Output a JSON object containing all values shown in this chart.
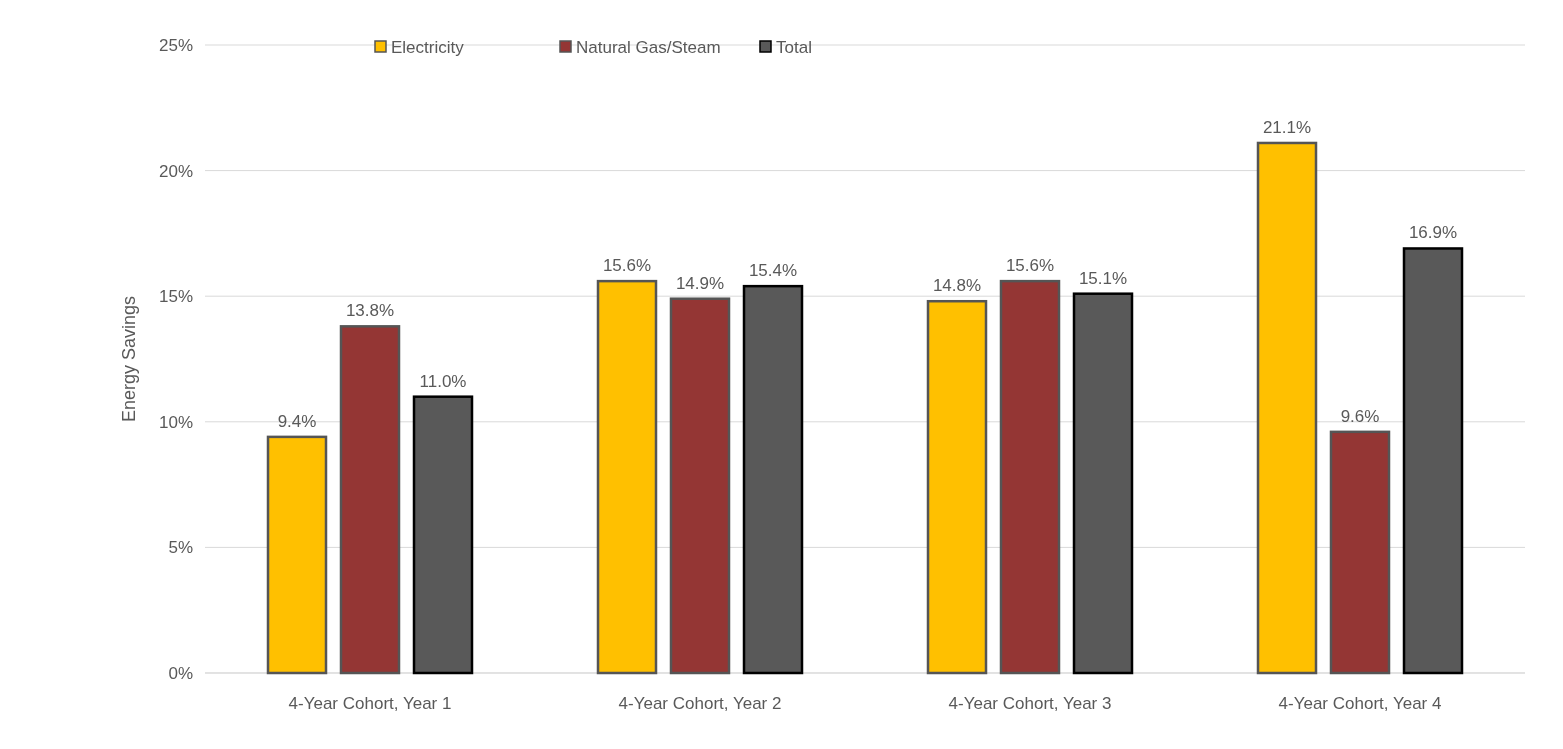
{
  "chart_data": {
    "type": "bar",
    "ylabel": "Energy Savings",
    "categories": [
      "4-Year Cohort, Year 1",
      "4-Year Cohort, Year 2",
      "4-Year Cohort, Year 3",
      "4-Year Cohort, Year 4"
    ],
    "series": [
      {
        "name": "Electricity",
        "color": "#ffc000",
        "values": [
          9.4,
          15.6,
          14.8,
          21.1
        ]
      },
      {
        "name": "Natural Gas/Steam",
        "color": "#943634",
        "values": [
          13.8,
          14.9,
          15.6,
          9.6
        ]
      },
      {
        "name": "Total",
        "color": "#595959",
        "values": [
          11.0,
          15.4,
          15.1,
          16.9
        ]
      }
    ],
    "ylim": [
      0,
      25
    ],
    "yticks": [
      {
        "value": 0,
        "label": "0%"
      },
      {
        "value": 5,
        "label": "5%"
      },
      {
        "value": 10,
        "label": "10%"
      },
      {
        "value": 15,
        "label": "15%"
      },
      {
        "value": 20,
        "label": "20%"
      },
      {
        "value": 25,
        "label": "25%"
      }
    ],
    "value_labels": [
      [
        "9.4%",
        "15.6%",
        "14.8%",
        "21.1%"
      ],
      [
        "13.8%",
        "14.9%",
        "15.6%",
        "9.6%"
      ],
      [
        "11.0%",
        "15.4%",
        "15.1%",
        "16.9%"
      ]
    ],
    "grid": "y",
    "legend": "top"
  }
}
